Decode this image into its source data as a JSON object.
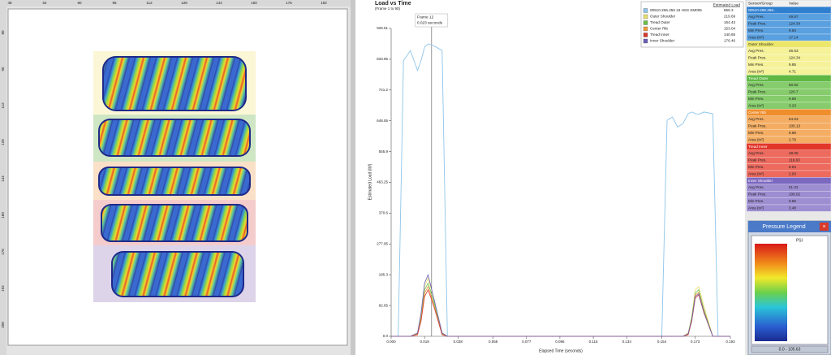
{
  "ruler": {
    "top": [
      48,
      64,
      80,
      96,
      112,
      128,
      144,
      160,
      176,
      192
    ],
    "left": [
      80,
      96,
      112,
      128,
      144,
      160,
      176,
      192,
      208
    ]
  },
  "chart_data": {
    "type": "line",
    "title": "Load vs Time",
    "subtitle": "(Frame 1 to 90)",
    "x_label": "Elapsed Time (seconds)",
    "y_label": "Estimated Load (lbf)",
    "legend_title": "Estimated Load",
    "x": [
      0,
      0.004,
      0.007,
      0.011,
      0.015,
      0.017,
      0.019,
      0.021,
      0.024,
      0.029,
      0.032,
      0.04,
      0.15,
      0.154,
      0.157,
      0.16,
      0.163,
      0.166,
      0.169,
      0.171,
      0.173,
      0.175,
      0.178,
      0.183,
      0.186,
      0.193
    ],
    "series": [
      {
        "name": "00510-256.256 16 HSS SM005",
        "color": "#8ec5ea",
        "legend_value": 856.3,
        "values": [
          0,
          0,
          830,
          860,
          800,
          830,
          870,
          880,
          875,
          860,
          0,
          0,
          0,
          0,
          650,
          660,
          630,
          640,
          670,
          675,
          670,
          668,
          675,
          670,
          0,
          0
        ]
      },
      {
        "name": "Outer Shoulder",
        "color": "#e8e070",
        "legend_value": 219.69,
        "values": [
          0,
          0,
          0,
          0,
          10,
          60,
          150,
          175,
          120,
          10,
          0,
          0,
          0,
          0,
          0,
          0,
          0,
          0,
          10,
          60,
          140,
          150,
          90,
          0,
          0,
          0
        ]
      },
      {
        "name": "Tread Outer",
        "color": "#6cbf4a",
        "legend_value": 164.43,
        "values": [
          0,
          0,
          0,
          0,
          8,
          55,
          140,
          160,
          110,
          8,
          0,
          0,
          0,
          0,
          0,
          0,
          0,
          0,
          8,
          55,
          130,
          140,
          80,
          0,
          0,
          0
        ]
      },
      {
        "name": "Center Rib",
        "color": "#f09a3a",
        "legend_value": 153.04,
        "values": [
          0,
          0,
          0,
          0,
          6,
          50,
          130,
          150,
          100,
          6,
          0,
          0,
          0,
          0,
          0,
          0,
          0,
          0,
          6,
          50,
          125,
          132,
          75,
          0,
          0,
          0
        ]
      },
      {
        "name": "Tread Inner",
        "color": "#d8382c",
        "legend_value": 140.65,
        "values": [
          0,
          0,
          0,
          0,
          5,
          45,
          120,
          140,
          95,
          5,
          0,
          0,
          0,
          0,
          0,
          0,
          0,
          0,
          5,
          45,
          115,
          125,
          70,
          0,
          0,
          0
        ]
      },
      {
        "name": "Inner Shoulder",
        "color": "#6a5fb8",
        "legend_value": 176.46,
        "values": [
          0,
          0,
          0,
          0,
          10,
          70,
          160,
          185,
          120,
          10,
          0,
          0,
          0,
          0,
          0,
          0,
          0,
          0,
          8,
          50,
          120,
          128,
          72,
          0,
          0,
          0
        ]
      }
    ],
    "xlim": [
      0,
      0.193
    ],
    "ylim": [
      0,
      926.51
    ],
    "xticks": [
      {
        "value": 0,
        "label": "0.000"
      },
      0.019,
      0.038,
      0.058,
      0.077,
      0.096,
      0.115,
      0.134,
      0.154,
      0.173,
      0.193
    ],
    "yticks": [
      {
        "value": 0,
        "label": "0.0"
      },
      92.65,
      185.3,
      277.95,
      370.6,
      463.25,
      555.9,
      648.55,
      741.2,
      833.85,
      926.51
    ],
    "frame_marker": {
      "label": "Frame 12",
      "time_label": "0.023 seconds",
      "x": 0.023
    }
  },
  "table": {
    "headers": [
      "Sensor/Group",
      "Value"
    ],
    "row_labels": [
      "Avg Pres.",
      "Peak Pres.",
      "Min Pres.",
      "Area (in²)"
    ],
    "groups": [
      {
        "name": "00510-256.256...",
        "color": "#2f7fd0",
        "light": "#5aa0e0",
        "values": [
          49.87,
          124.34,
          9.84,
          17.14
        ]
      },
      {
        "name": "Outer Shoulder",
        "color": "#ece76a",
        "light": "#f6f29a",
        "values": [
          46.63,
          124.34,
          9.85,
          4.71
        ]
      },
      {
        "name": "Tread Outer",
        "color": "#5fb843",
        "light": "#86cc6c",
        "values": [
          50.92,
          120.7,
          9.89,
          3.23
        ]
      },
      {
        "name": "Center Rib",
        "color": "#ee8e2c",
        "light": "#f4ad62",
        "values": [
          54.83,
          105.13,
          9.88,
          2.79
        ]
      },
      {
        "name": "Tread Inner",
        "color": "#e2362a",
        "light": "#ec6a5e",
        "values": [
          48.05,
          119.63,
          9.84,
          2.93
        ]
      },
      {
        "name": "Inner Shoulder",
        "color": "#7b68c0",
        "light": "#9d8ed2",
        "values": [
          51.32,
          106.02,
          9.86,
          3.48
        ]
      }
    ]
  },
  "pressure_legend": {
    "title": "Pressure Legend",
    "unit": "PSI",
    "range": "0.0 - 105.63"
  }
}
